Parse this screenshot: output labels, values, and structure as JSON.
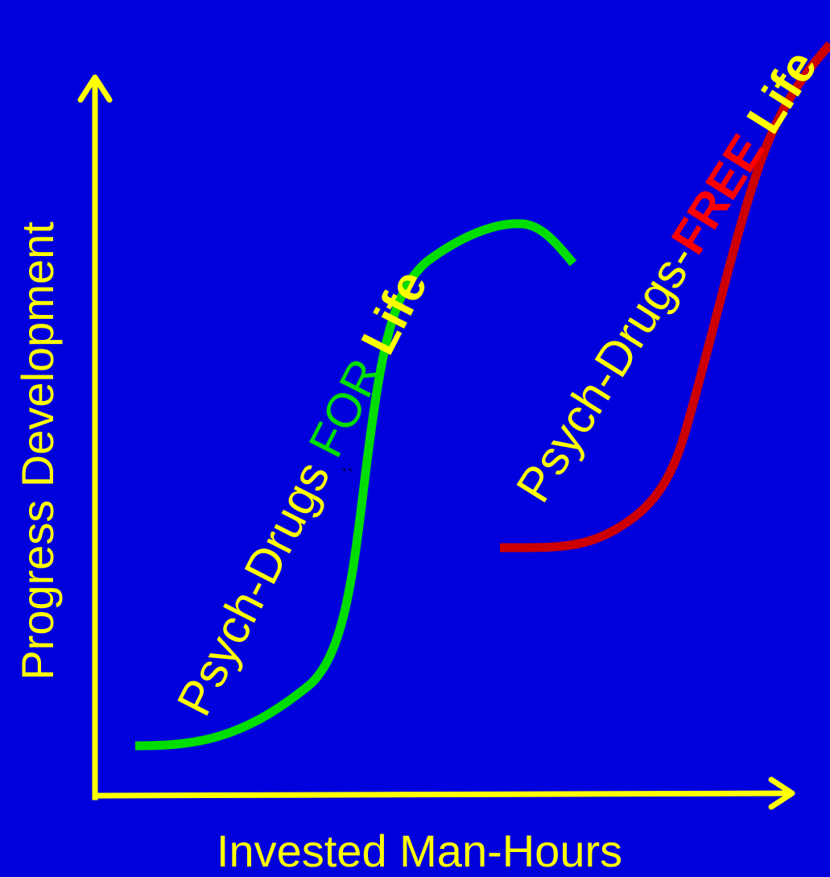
{
  "colors": {
    "background": "#0000DD",
    "axis": "#FFFF00",
    "curve_for": "#00DD00",
    "curve_free": "#CC0000",
    "label_text": "#FFFF00",
    "emphasis_for": "#00DD00",
    "emphasis_free": "#FF0000"
  },
  "axes": {
    "y_label": "Progress Development",
    "x_label": "Invested Man-Hours"
  },
  "curves": {
    "for": {
      "label_prefix": "Psych-Drugs ",
      "label_emphasis": "FOR",
      "label_suffix": " Life"
    },
    "free": {
      "label_prefix": "Psych-Drugs-",
      "label_emphasis": "FREE",
      "label_suffix": " Life"
    }
  },
  "stray_mark": "``"
}
